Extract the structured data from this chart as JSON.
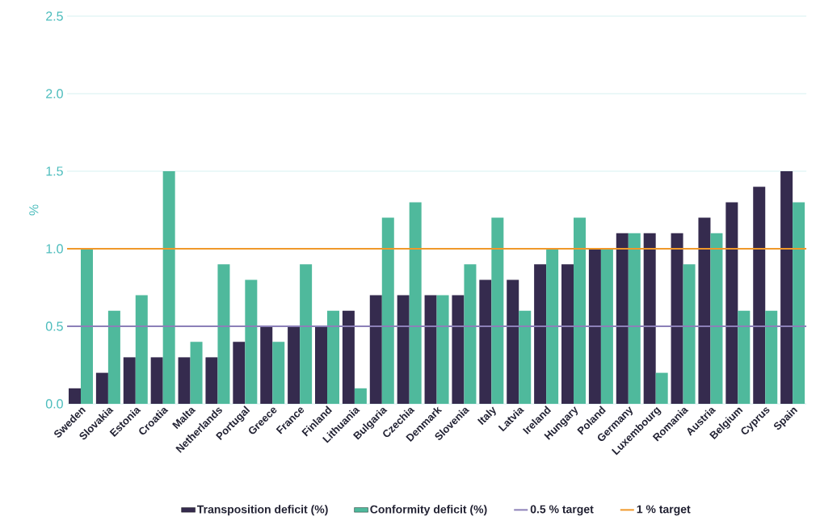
{
  "chart_data": {
    "type": "bar",
    "categories": [
      "Sweden",
      "Slovakia",
      "Estonia",
      "Croatia",
      "Malta",
      "Netherlands",
      "Portugal",
      "Greece",
      "France",
      "Finland",
      "Lithuania",
      "Bulgaria",
      "Czechia",
      "Denmark",
      "Slovenia",
      "Italy",
      "Latvia",
      "Ireland",
      "Hungary",
      "Poland",
      "Germany",
      "Luxembourg",
      "Romania",
      "Austria",
      "Belgium",
      "Cyprus",
      "Spain"
    ],
    "series": [
      {
        "name": "Transposition deficit (%)",
        "color": "#352b4e",
        "values": [
          0.1,
          0.2,
          0.3,
          0.3,
          0.3,
          0.3,
          0.4,
          0.5,
          0.5,
          0.5,
          0.6,
          0.7,
          0.7,
          0.7,
          0.7,
          0.8,
          0.8,
          0.9,
          0.9,
          1.0,
          1.1,
          1.1,
          1.1,
          1.2,
          1.3,
          1.4,
          1.5
        ]
      },
      {
        "name": "Conformity deficit (%)",
        "color": "#4fb99c",
        "values": [
          1.0,
          0.6,
          0.7,
          1.5,
          0.4,
          0.9,
          0.8,
          0.4,
          0.9,
          0.6,
          0.1,
          1.2,
          1.3,
          0.7,
          0.9,
          1.2,
          0.6,
          1.0,
          1.2,
          1.0,
          1.1,
          0.2,
          0.9,
          1.1,
          0.6,
          0.6,
          1.3
        ]
      }
    ],
    "ylabel": "%",
    "ylim": [
      0,
      2.5
    ],
    "yticks": [
      {
        "value": 0,
        "label": "0.0"
      },
      {
        "value": 0.5,
        "label": "0.5"
      },
      {
        "value": 1,
        "label": "1.0"
      },
      {
        "value": 1.5,
        "label": "1.5"
      },
      {
        "value": 2,
        "label": "2.0"
      },
      {
        "value": 2.5,
        "label": "2.5"
      }
    ],
    "ref_lines": [
      {
        "axis": "y",
        "value": 0.5,
        "label": "0.5 % target",
        "color": "#8c80b8",
        "line_style": "solid"
      },
      {
        "axis": "y",
        "value": 1,
        "label": "1 % target",
        "color": "#f0982a",
        "line_style": "solid"
      }
    ],
    "grid": "y",
    "legend": "bottom"
  }
}
